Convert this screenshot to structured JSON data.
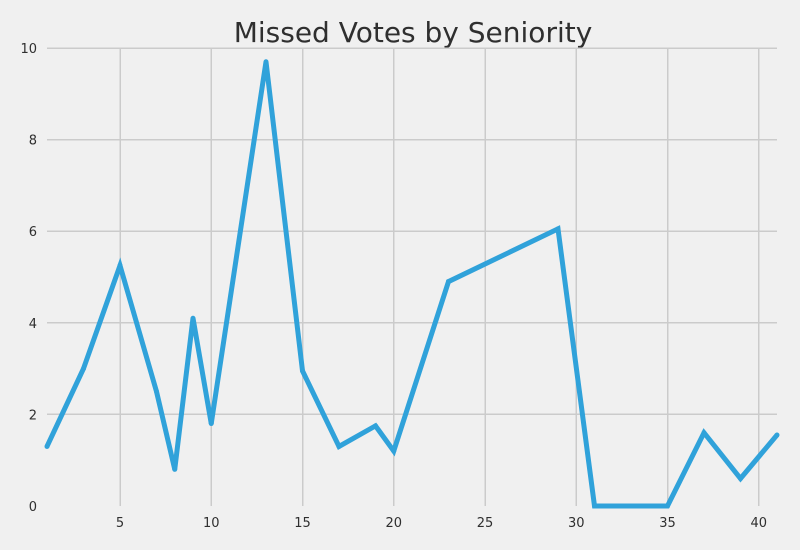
{
  "chart_data": {
    "type": "line",
    "title": "Missed Votes by Seniority",
    "xlabel": "",
    "ylabel": "",
    "xlim": [
      1,
      41
    ],
    "ylim": [
      0,
      10
    ],
    "x_ticks": [
      5,
      10,
      15,
      20,
      25,
      30,
      35,
      40
    ],
    "x_tick_labels": [
      "5",
      "10",
      "15",
      "20",
      "25",
      "30",
      "35",
      "40"
    ],
    "y_ticks": [
      0,
      2,
      4,
      6,
      8,
      10
    ],
    "y_tick_labels": [
      "0",
      "2",
      "4",
      "6",
      "8",
      "10"
    ],
    "grid": true,
    "series": [
      {
        "color": "#30a2da",
        "x": [
          1,
          3,
          5,
          7,
          8,
          9,
          10,
          13,
          15,
          17,
          19,
          20,
          23,
          29,
          31,
          35,
          37,
          39,
          41
        ],
        "y": [
          1.3,
          3.0,
          5.25,
          2.5,
          0.8,
          4.1,
          1.8,
          9.7,
          2.95,
          1.3,
          1.75,
          1.2,
          4.9,
          6.05,
          0.0,
          0.0,
          1.6,
          0.6,
          1.55
        ]
      }
    ]
  },
  "colors": {
    "background": "#f0f0f0",
    "grid": "#cbcbcb",
    "text": "#2f2f2f",
    "line": "#30a2da"
  }
}
